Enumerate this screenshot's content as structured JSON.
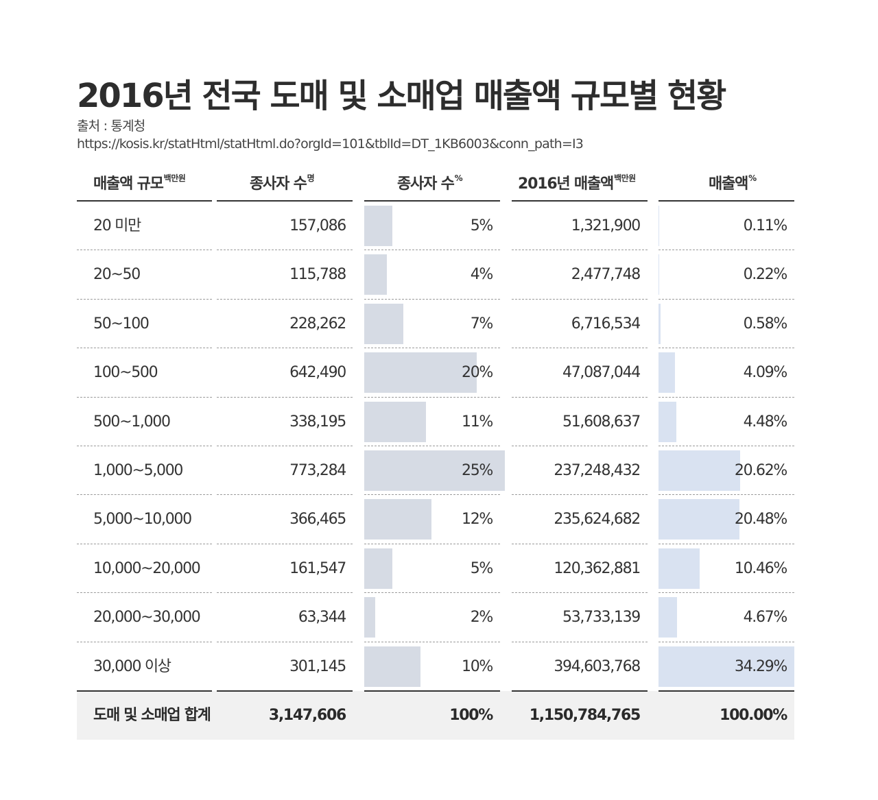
{
  "header": {
    "title": "2016년 전국 도매 및 소매업 매출액 규모별 현황",
    "source_label": "출처 : 통계청",
    "source_url": "https://kosis.kr/statHtml/statHtml.do?orgId=101&tblId=DT_1KB6003&conn_path=I3"
  },
  "columns": [
    {
      "label": "매출액 규모",
      "unit": "백만원"
    },
    {
      "label": "종사자 수",
      "unit": "명"
    },
    {
      "label": "종사자 수",
      "unit": "%"
    },
    {
      "label": "2016년 매출액",
      "unit": "백만원"
    },
    {
      "label": "매출액",
      "unit": "%"
    }
  ],
  "colors": {
    "employee_bar": "#d6dbe4",
    "revenue_bar": "#d9e2f1",
    "total_bg": "#f1f1f1"
  },
  "rows": [
    {
      "size": "20 미만",
      "employees": "157,086",
      "emp_pct": "5%",
      "revenue": "1,321,900",
      "rev_pct": "0.11%"
    },
    {
      "size": "20~50",
      "employees": "115,788",
      "emp_pct": "4%",
      "revenue": "2,477,748",
      "rev_pct": "0.22%"
    },
    {
      "size": "50~100",
      "employees": "228,262",
      "emp_pct": "7%",
      "revenue": "6,716,534",
      "rev_pct": "0.58%"
    },
    {
      "size": "100~500",
      "employees": "642,490",
      "emp_pct": "20%",
      "revenue": "47,087,044",
      "rev_pct": "4.09%"
    },
    {
      "size": "500~1,000",
      "employees": "338,195",
      "emp_pct": "11%",
      "revenue": "51,608,637",
      "rev_pct": "4.48%"
    },
    {
      "size": "1,000~5,000",
      "employees": "773,284",
      "emp_pct": "25%",
      "revenue": "237,248,432",
      "rev_pct": "20.62%"
    },
    {
      "size": "5,000~10,000",
      "employees": "366,465",
      "emp_pct": "12%",
      "revenue": "235,624,682",
      "rev_pct": "20.48%"
    },
    {
      "size": "10,000~20,000",
      "employees": "161,547",
      "emp_pct": "5%",
      "revenue": "120,362,881",
      "rev_pct": "10.46%"
    },
    {
      "size": "20,000~30,000",
      "employees": "63,344",
      "emp_pct": "2%",
      "revenue": "53,733,139",
      "rev_pct": "4.67%"
    },
    {
      "size": "30,000 이상",
      "employees": "301,145",
      "emp_pct": "10%",
      "revenue": "394,603,768",
      "rev_pct": "34.29%"
    }
  ],
  "total": {
    "size": "도매 및 소매업 합계",
    "employees": "3,147,606",
    "emp_pct": "100%",
    "revenue": "1,150,784,765",
    "rev_pct": "100.00%"
  },
  "chart_data": {
    "type": "table",
    "title": "2016년 전국 도매 및 소매업 매출액 규모별 현황",
    "categories": [
      "20 미만",
      "20~50",
      "50~100",
      "100~500",
      "500~1,000",
      "1,000~5,000",
      "5,000~10,000",
      "10,000~20,000",
      "20,000~30,000",
      "30,000 이상"
    ],
    "series": [
      {
        "name": "종사자 수 (명)",
        "values": [
          157086,
          115788,
          228262,
          642490,
          338195,
          773284,
          366465,
          161547,
          63344,
          301145
        ]
      },
      {
        "name": "종사자 수 (%)",
        "values": [
          5,
          4,
          7,
          20,
          11,
          25,
          12,
          5,
          2,
          10
        ]
      },
      {
        "name": "2016년 매출액 (백만원)",
        "values": [
          1321900,
          2477748,
          6716534,
          47087044,
          51608637,
          237248432,
          235624682,
          120362881,
          53733139,
          394603768
        ]
      },
      {
        "name": "매출액 (%)",
        "values": [
          0.11,
          0.22,
          0.58,
          4.09,
          4.48,
          20.62,
          20.48,
          10.46,
          4.67,
          34.29
        ]
      }
    ],
    "totals": {
      "employees": 3147606,
      "emp_pct": 100,
      "revenue": 1150784765,
      "rev_pct": 100.0
    }
  }
}
